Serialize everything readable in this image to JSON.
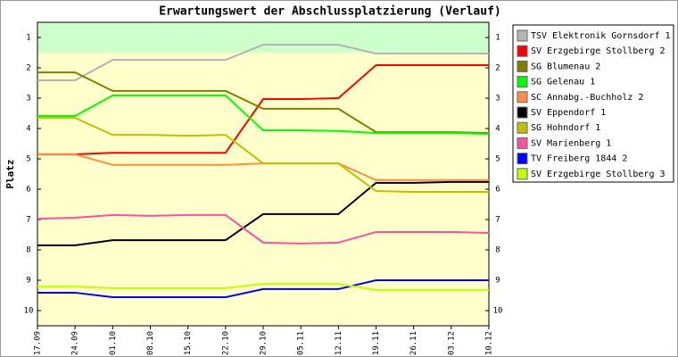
{
  "chart_data": {
    "type": "line",
    "title": "Erwartungswert der Abschlussplatzierung (Verlauf)",
    "y_label": "Platz",
    "y_inverted": true,
    "ylim": [
      0.5,
      10.5
    ],
    "yticks": [
      1,
      2,
      3,
      4,
      5,
      6,
      7,
      8,
      9,
      10
    ],
    "bands": [
      {
        "from": 0.5,
        "to": 1.5,
        "color": "#ccffcc"
      },
      {
        "from": 1.5,
        "to": 10.5,
        "color": "#ffffcc"
      }
    ],
    "categories": [
      "17.09",
      "24.09",
      "01.10",
      "08.10",
      "15.10",
      "22.10",
      "29.10",
      "05.11",
      "12.11",
      "19.11",
      "26.11",
      "03.12",
      "10.12"
    ],
    "legend": "right",
    "series": [
      {
        "name": "TSV Elektronik Gornsdorf 1",
        "color": "#b4b4b4",
        "values": [
          2.41,
          2.41,
          1.74,
          1.74,
          1.74,
          1.74,
          1.24,
          1.24,
          1.24,
          1.53,
          1.53,
          1.53,
          1.53
        ]
      },
      {
        "name": "SV Erzgebirge Stollberg 2",
        "color": "#ff0000",
        "values": [
          4.85,
          4.85,
          4.8,
          4.8,
          4.8,
          4.8,
          3.03,
          3.03,
          3.0,
          1.91,
          1.91,
          1.91,
          1.91
        ]
      },
      {
        "name": "SG Blumenau 2",
        "color": "#808000",
        "values": [
          2.15,
          2.15,
          2.76,
          2.76,
          2.76,
          2.76,
          3.35,
          3.35,
          3.35,
          4.12,
          4.12,
          4.12,
          4.15
        ]
      },
      {
        "name": "SG Gelenau 1",
        "color": "#00ff00",
        "values": [
          3.59,
          3.59,
          2.91,
          2.91,
          2.91,
          2.91,
          4.06,
          4.06,
          4.08,
          4.15,
          4.15,
          4.15,
          4.18
        ]
      },
      {
        "name": "SC Annabg.-Buchholz 2",
        "color": "#ff8c40",
        "values": [
          4.85,
          4.85,
          5.2,
          5.2,
          5.2,
          5.2,
          5.15,
          5.15,
          5.15,
          5.7,
          5.7,
          5.7,
          5.7
        ]
      },
      {
        "name": "SV Eppendorf 1",
        "color": "#000000",
        "values": [
          7.85,
          7.85,
          7.68,
          7.68,
          7.68,
          7.68,
          6.82,
          6.82,
          6.82,
          5.79,
          5.79,
          5.76,
          5.76
        ]
      },
      {
        "name": "SG Hohndorf 1",
        "color": "#c0c000",
        "values": [
          3.65,
          3.65,
          4.21,
          4.21,
          4.24,
          4.21,
          5.15,
          5.15,
          5.15,
          6.06,
          6.09,
          6.09,
          6.09
        ]
      },
      {
        "name": "SV Marienberg 1",
        "color": "#ff50a0",
        "values": [
          6.97,
          6.94,
          6.85,
          6.88,
          6.85,
          6.85,
          7.76,
          7.79,
          7.76,
          7.41,
          7.41,
          7.41,
          7.44
        ]
      },
      {
        "name": "TV Freiberg 1844 2",
        "color": "#0000ff",
        "values": [
          9.41,
          9.41,
          9.56,
          9.56,
          9.56,
          9.56,
          9.29,
          9.29,
          9.29,
          9.0,
          9.0,
          9.0,
          9.0
        ]
      },
      {
        "name": "SV Erzgebirge Stollberg 3",
        "color": "#c0ff00",
        "values": [
          9.21,
          9.21,
          9.26,
          9.26,
          9.26,
          9.26,
          9.12,
          9.12,
          9.12,
          9.32,
          9.32,
          9.32,
          9.32
        ]
      }
    ]
  }
}
